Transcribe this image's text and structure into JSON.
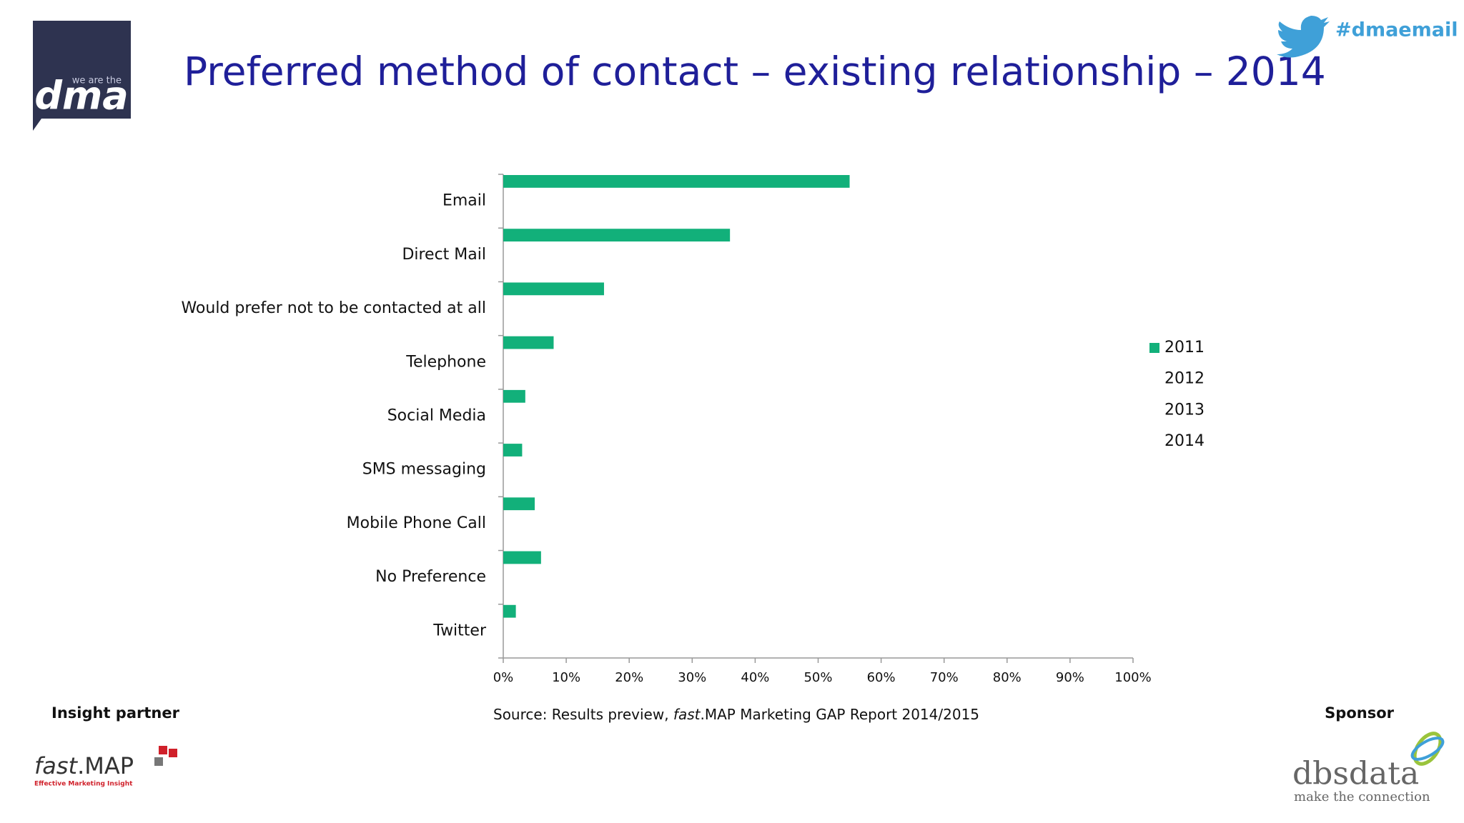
{
  "chart_data": {
    "type": "bar",
    "orientation": "horizontal",
    "title": "Preferred method of contact – existing relationship – 2014",
    "categories": [
      "Email",
      "Direct Mail",
      "Would prefer not to be contacted at all",
      "Telephone",
      "Social Media",
      "SMS messaging",
      "Mobile Phone Call",
      "No Preference",
      "Twitter"
    ],
    "series": [
      {
        "name": "2011",
        "color": "#12b07a",
        "values": [
          55,
          36,
          16,
          8,
          3.5,
          3,
          5,
          6,
          2
        ]
      },
      {
        "name": "2012",
        "color": "#ffffff",
        "values": [
          null,
          null,
          null,
          null,
          null,
          null,
          null,
          null,
          null
        ]
      },
      {
        "name": "2013",
        "color": "#ffffff",
        "values": [
          null,
          null,
          null,
          null,
          null,
          null,
          null,
          null,
          null
        ]
      },
      {
        "name": "2014",
        "color": "#ffffff",
        "values": [
          null,
          null,
          null,
          null,
          null,
          null,
          null,
          null,
          null
        ]
      }
    ],
    "xlim": [
      0,
      100
    ],
    "xticks": [
      {
        "value": 0,
        "label": "0%"
      },
      {
        "value": 10,
        "label": "10%"
      },
      {
        "value": 20,
        "label": "20%"
      },
      {
        "value": 30,
        "label": "30%"
      },
      {
        "value": 40,
        "label": "40%"
      },
      {
        "value": 50,
        "label": "50%"
      },
      {
        "value": 60,
        "label": "60%"
      },
      {
        "value": 70,
        "label": "70%"
      },
      {
        "value": 80,
        "label": "80%"
      },
      {
        "value": 90,
        "label": "90%"
      },
      {
        "value": 100,
        "label": "100%"
      }
    ],
    "grid": false,
    "legend": "right",
    "source": [
      "Source: Results preview, ",
      "fast",
      ".MAP Marketing GAP Report 2014/2015"
    ]
  },
  "slide": {
    "hashtag": "#dmaemail",
    "insight_partner": "Insight partner",
    "sponsor": "Sponsor",
    "dma_logo": {
      "tagline": "we are the",
      "name": "dma"
    },
    "fastmap_logo": {
      "name": [
        "fast",
        ".MAP"
      ],
      "tagline": "Effective Marketing Insight"
    },
    "dbs_logo": {
      "name": "dbsdata",
      "tagline": "make the connection"
    }
  }
}
